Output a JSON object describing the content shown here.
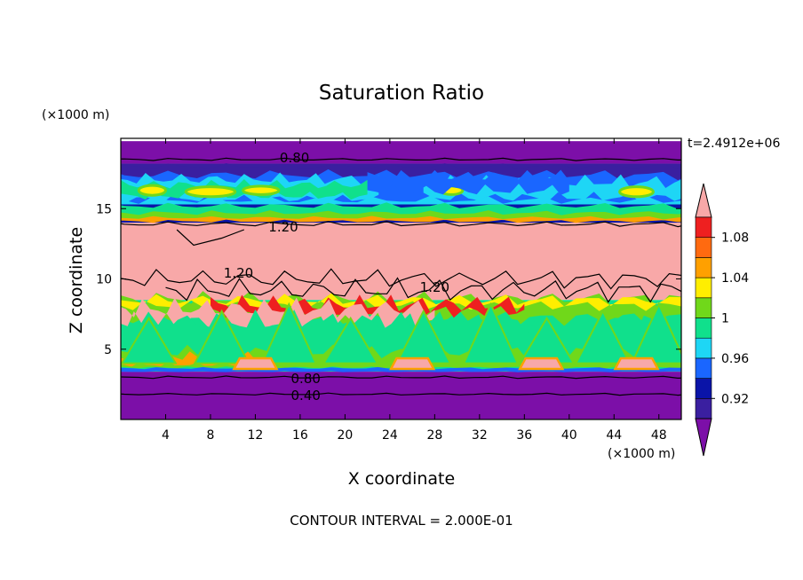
{
  "chart_data": {
    "type": "heatmap",
    "title": "Saturation Ratio",
    "xlabel": "X coordinate",
    "ylabel": "Z coordinate",
    "x_units": "(×1000 m)",
    "z_units": "(×1000 m)",
    "time_label": "t=2.4912e+06",
    "footer": "CONTOUR INTERVAL = 2.000E-01",
    "xlim": [
      0,
      50
    ],
    "ylim": [
      0,
      20
    ],
    "x_ticks": [
      "4",
      "8",
      "12",
      "16",
      "20",
      "24",
      "28",
      "32",
      "36",
      "40",
      "44",
      "48"
    ],
    "y_ticks": [
      "5",
      "10",
      "15"
    ],
    "colorbar": {
      "levels": [
        0.9,
        0.92,
        0.94,
        0.96,
        0.98,
        1.0,
        1.02,
        1.04,
        1.06,
        1.08,
        1.1
      ],
      "tick_labels": [
        "0.92",
        "0.96",
        "1",
        "1.04",
        "1.08"
      ],
      "colors": [
        "#7c0fa8",
        "#3a1fa0",
        "#0a14a8",
        "#1a66ff",
        "#1ed6f5",
        "#10e08c",
        "#70d81a",
        "#ffee00",
        "#ffa000",
        "#ff6a10",
        "#ee2020",
        "#f8a8a8"
      ]
    },
    "layers": [
      {
        "z": [
          19.8,
          18.2
        ],
        "value": "<0.90",
        "color": "#7c0fa8"
      },
      {
        "z": [
          18.2,
          17.6
        ],
        "value": "0.92",
        "color": "#3a1fa0"
      },
      {
        "z": [
          17.6,
          15.3
        ],
        "value": "0.96-1.02",
        "color": "#1ed6f5"
      },
      {
        "z": [
          15.3,
          14.0
        ],
        "value": "0.92-1.06",
        "color": "#0a14a8"
      },
      {
        "z": [
          14.0,
          8.5
        ],
        "value": ">1.10",
        "color": "#f8a8a8"
      },
      {
        "z": [
          8.5,
          3.4
        ],
        "value": "0.98-1.10",
        "color": "#10e08c"
      },
      {
        "z": [
          3.4,
          0.0
        ],
        "value": "<0.90",
        "color": "#7c0fa8"
      }
    ],
    "contour_labels": [
      {
        "text": "0.80",
        "x": 15.5,
        "z": 18.6
      },
      {
        "text": "1.20",
        "x": 14.5,
        "z": 13.7
      },
      {
        "text": "1.20",
        "x": 10.5,
        "z": 10.4
      },
      {
        "text": "1.20",
        "x": 28.0,
        "z": 9.4
      },
      {
        "text": "0.80",
        "x": 16.5,
        "z": 2.9
      },
      {
        "text": "0.40",
        "x": 16.5,
        "z": 1.7
      }
    ]
  }
}
